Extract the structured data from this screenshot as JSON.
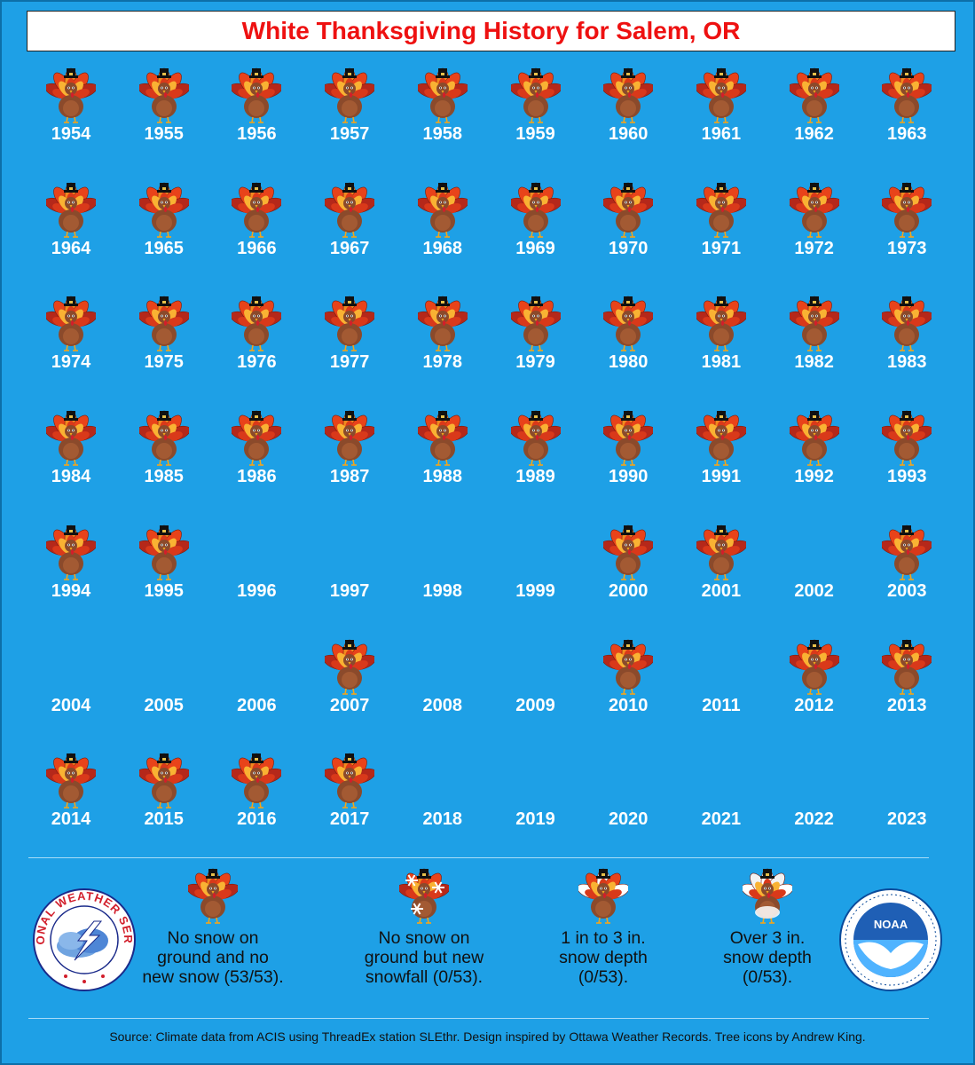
{
  "title": "White Thanksgiving History for Salem, OR",
  "colors": {
    "background": "#1ea0e6",
    "title_text": "#ee1111",
    "year_text": "#ffffff"
  },
  "years": [
    {
      "year": "1954",
      "status": "no-snow"
    },
    {
      "year": "1955",
      "status": "no-snow"
    },
    {
      "year": "1956",
      "status": "no-snow"
    },
    {
      "year": "1957",
      "status": "no-snow"
    },
    {
      "year": "1958",
      "status": "no-snow"
    },
    {
      "year": "1959",
      "status": "no-snow"
    },
    {
      "year": "1960",
      "status": "no-snow"
    },
    {
      "year": "1961",
      "status": "no-snow"
    },
    {
      "year": "1962",
      "status": "no-snow"
    },
    {
      "year": "1963",
      "status": "no-snow"
    },
    {
      "year": "1964",
      "status": "no-snow"
    },
    {
      "year": "1965",
      "status": "no-snow"
    },
    {
      "year": "1966",
      "status": "no-snow"
    },
    {
      "year": "1967",
      "status": "no-snow"
    },
    {
      "year": "1968",
      "status": "no-snow"
    },
    {
      "year": "1969",
      "status": "no-snow"
    },
    {
      "year": "1970",
      "status": "no-snow"
    },
    {
      "year": "1971",
      "status": "no-snow"
    },
    {
      "year": "1972",
      "status": "no-snow"
    },
    {
      "year": "1973",
      "status": "no-snow"
    },
    {
      "year": "1974",
      "status": "no-snow"
    },
    {
      "year": "1975",
      "status": "no-snow"
    },
    {
      "year": "1976",
      "status": "no-snow"
    },
    {
      "year": "1977",
      "status": "no-snow"
    },
    {
      "year": "1978",
      "status": "no-snow"
    },
    {
      "year": "1979",
      "status": "no-snow"
    },
    {
      "year": "1980",
      "status": "no-snow"
    },
    {
      "year": "1981",
      "status": "no-snow"
    },
    {
      "year": "1982",
      "status": "no-snow"
    },
    {
      "year": "1983",
      "status": "no-snow"
    },
    {
      "year": "1984",
      "status": "no-snow"
    },
    {
      "year": "1985",
      "status": "no-snow"
    },
    {
      "year": "1986",
      "status": "no-snow"
    },
    {
      "year": "1987",
      "status": "no-snow"
    },
    {
      "year": "1988",
      "status": "no-snow"
    },
    {
      "year": "1989",
      "status": "no-snow"
    },
    {
      "year": "1990",
      "status": "no-snow"
    },
    {
      "year": "1991",
      "status": "no-snow"
    },
    {
      "year": "1992",
      "status": "no-snow"
    },
    {
      "year": "1993",
      "status": "no-snow"
    },
    {
      "year": "1994",
      "status": "no-snow"
    },
    {
      "year": "1995",
      "status": "no-snow"
    },
    {
      "year": "1996",
      "status": "none"
    },
    {
      "year": "1997",
      "status": "none"
    },
    {
      "year": "1998",
      "status": "none"
    },
    {
      "year": "1999",
      "status": "none"
    },
    {
      "year": "2000",
      "status": "no-snow"
    },
    {
      "year": "2001",
      "status": "no-snow"
    },
    {
      "year": "2002",
      "status": "none"
    },
    {
      "year": "2003",
      "status": "no-snow"
    },
    {
      "year": "2004",
      "status": "none"
    },
    {
      "year": "2005",
      "status": "none"
    },
    {
      "year": "2006",
      "status": "none"
    },
    {
      "year": "2007",
      "status": "no-snow"
    },
    {
      "year": "2008",
      "status": "none"
    },
    {
      "year": "2009",
      "status": "none"
    },
    {
      "year": "2010",
      "status": "no-snow"
    },
    {
      "year": "2011",
      "status": "none"
    },
    {
      "year": "2012",
      "status": "no-snow"
    },
    {
      "year": "2013",
      "status": "no-snow"
    },
    {
      "year": "2014",
      "status": "no-snow"
    },
    {
      "year": "2015",
      "status": "no-snow"
    },
    {
      "year": "2016",
      "status": "no-snow"
    },
    {
      "year": "2017",
      "status": "no-snow"
    },
    {
      "year": "2018",
      "status": "none"
    },
    {
      "year": "2019",
      "status": "none"
    },
    {
      "year": "2020",
      "status": "none"
    },
    {
      "year": "2021",
      "status": "none"
    },
    {
      "year": "2022",
      "status": "none"
    },
    {
      "year": "2023",
      "status": "none"
    }
  ],
  "legend": [
    {
      "icon": "turkey-icon",
      "text": "No snow on\nground and no\nnew snow (53/53)."
    },
    {
      "icon": "turkey-snowflake-icon",
      "text": "No snow on\nground but new\nsnowfall (0/53)."
    },
    {
      "icon": "turkey-snow-light-icon",
      "text": "1 in to 3 in.\nsnow depth\n(0/53)."
    },
    {
      "icon": "turkey-snow-heavy-icon",
      "text": "Over 3 in.\nsnow depth\n(0/53)."
    }
  ],
  "logos": {
    "nws": {
      "icon": "nws-logo-icon",
      "text": "NATIONAL WEATHER SERVICE"
    },
    "noaa": {
      "icon": "noaa-logo-icon",
      "text": "NOAA"
    }
  },
  "source": "Source: Climate data from ACIS using ThreadEx station SLEthr. Design inspired by Ottawa Weather Records. Tree icons by Andrew King."
}
